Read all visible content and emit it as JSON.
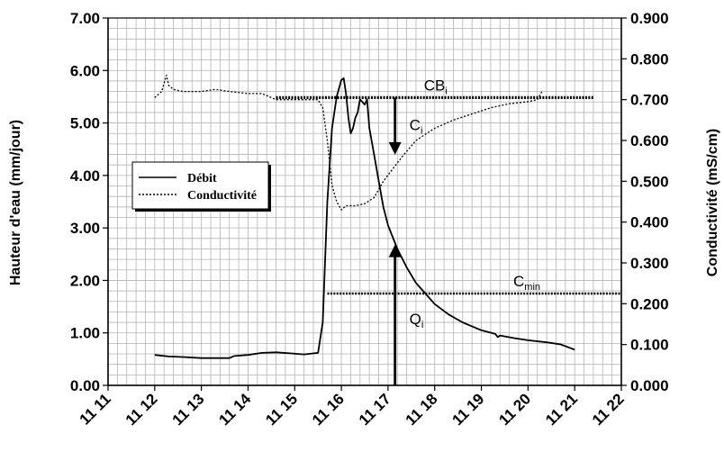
{
  "chart_data": {
    "type": "line",
    "ylabel_left": "Hauteur d'eau (mm/jour)",
    "ylabel_right": "Conductivité (mS/cm)",
    "xlabel": "",
    "x_tick_labels": [
      "11 11",
      "11 12",
      "11 13",
      "11 14",
      "11 15",
      "11 16",
      "11 17",
      "11 18",
      "11 19",
      "11 20",
      "11 21",
      "11 22"
    ],
    "x_range": [
      11,
      22
    ],
    "y_left_ticks": [
      "0.00",
      "1.00",
      "2.00",
      "3.00",
      "4.00",
      "5.00",
      "6.00",
      "7.00"
    ],
    "y_right_ticks": [
      "0.000",
      "0.100",
      "0.200",
      "0.300",
      "0.400",
      "0.500",
      "0.600",
      "0.700",
      "0.800",
      "0.900"
    ],
    "ylim_left": [
      0,
      7
    ],
    "ylim_right": [
      0,
      0.9
    ],
    "grid": true,
    "legend": {
      "placement": "center-left",
      "entries": [
        {
          "label": "Débit",
          "style": "solid"
        },
        {
          "label": "Conductivité",
          "style": "dotted"
        }
      ]
    },
    "series": [
      {
        "name": "Débit",
        "axis": "left",
        "style": "solid",
        "x": [
          12.0,
          12.3,
          12.6,
          13.0,
          13.3,
          13.6,
          13.7,
          14.0,
          14.3,
          14.6,
          14.9,
          15.2,
          15.5,
          15.6,
          15.7,
          15.8,
          15.9,
          16.0,
          16.05,
          16.1,
          16.15,
          16.2,
          16.25,
          16.3,
          16.35,
          16.4,
          16.5,
          16.55,
          16.6,
          16.7,
          16.8,
          16.9,
          17.0,
          17.2,
          17.4,
          17.6,
          17.8,
          18.0,
          18.3,
          18.6,
          19.0,
          19.3,
          19.35,
          19.4,
          19.7,
          20.0,
          20.4,
          20.7,
          21.0
        ],
        "y": [
          0.58,
          0.55,
          0.54,
          0.52,
          0.52,
          0.52,
          0.56,
          0.58,
          0.62,
          0.63,
          0.61,
          0.59,
          0.62,
          1.2,
          3.5,
          4.9,
          5.5,
          5.82,
          5.85,
          5.55,
          5.1,
          4.8,
          4.9,
          5.1,
          5.2,
          5.45,
          5.35,
          5.45,
          4.9,
          4.4,
          3.9,
          3.4,
          3.05,
          2.6,
          2.25,
          1.95,
          1.75,
          1.55,
          1.35,
          1.2,
          1.05,
          0.98,
          0.92,
          0.95,
          0.9,
          0.86,
          0.82,
          0.78,
          0.68
        ]
      },
      {
        "name": "Conductivité",
        "axis": "right",
        "style": "dotted",
        "x": [
          12.0,
          12.15,
          12.25,
          12.3,
          12.4,
          12.6,
          13.0,
          13.3,
          13.6,
          14.0,
          14.3,
          14.6,
          15.0,
          15.3,
          15.5,
          15.6,
          15.7,
          15.8,
          15.9,
          16.0,
          16.1,
          16.3,
          16.5,
          16.7,
          16.9,
          17.1,
          17.3,
          17.6,
          18.0,
          18.4,
          18.8,
          19.2,
          19.6,
          20.0,
          20.2,
          20.3
        ],
        "y": [
          0.705,
          0.72,
          0.76,
          0.735,
          0.725,
          0.72,
          0.72,
          0.725,
          0.72,
          0.715,
          0.715,
          0.7,
          0.7,
          0.7,
          0.7,
          0.68,
          0.6,
          0.49,
          0.45,
          0.43,
          0.44,
          0.44,
          0.445,
          0.46,
          0.5,
          0.53,
          0.56,
          0.6,
          0.63,
          0.65,
          0.665,
          0.68,
          0.69,
          0.695,
          0.7,
          0.72
        ]
      }
    ],
    "reference_lines": [
      {
        "label": "CB",
        "sub": "i",
        "axis": "right",
        "y": 0.705,
        "x_from": 14.6,
        "x_to": 21.4
      },
      {
        "label": "C",
        "sub": "min",
        "axis": "right",
        "y": 0.225,
        "x_from": 15.7,
        "x_to": 22.0
      }
    ],
    "annotations": [
      {
        "label": "C",
        "sub": "i",
        "arrow": "down",
        "x": 17.15,
        "y_from": 0.705,
        "y_to": 0.565
      },
      {
        "label": "Q",
        "sub": "i",
        "arrow": "up",
        "x": 17.15,
        "y_from": 0.0,
        "y_to": 0.345
      }
    ]
  }
}
